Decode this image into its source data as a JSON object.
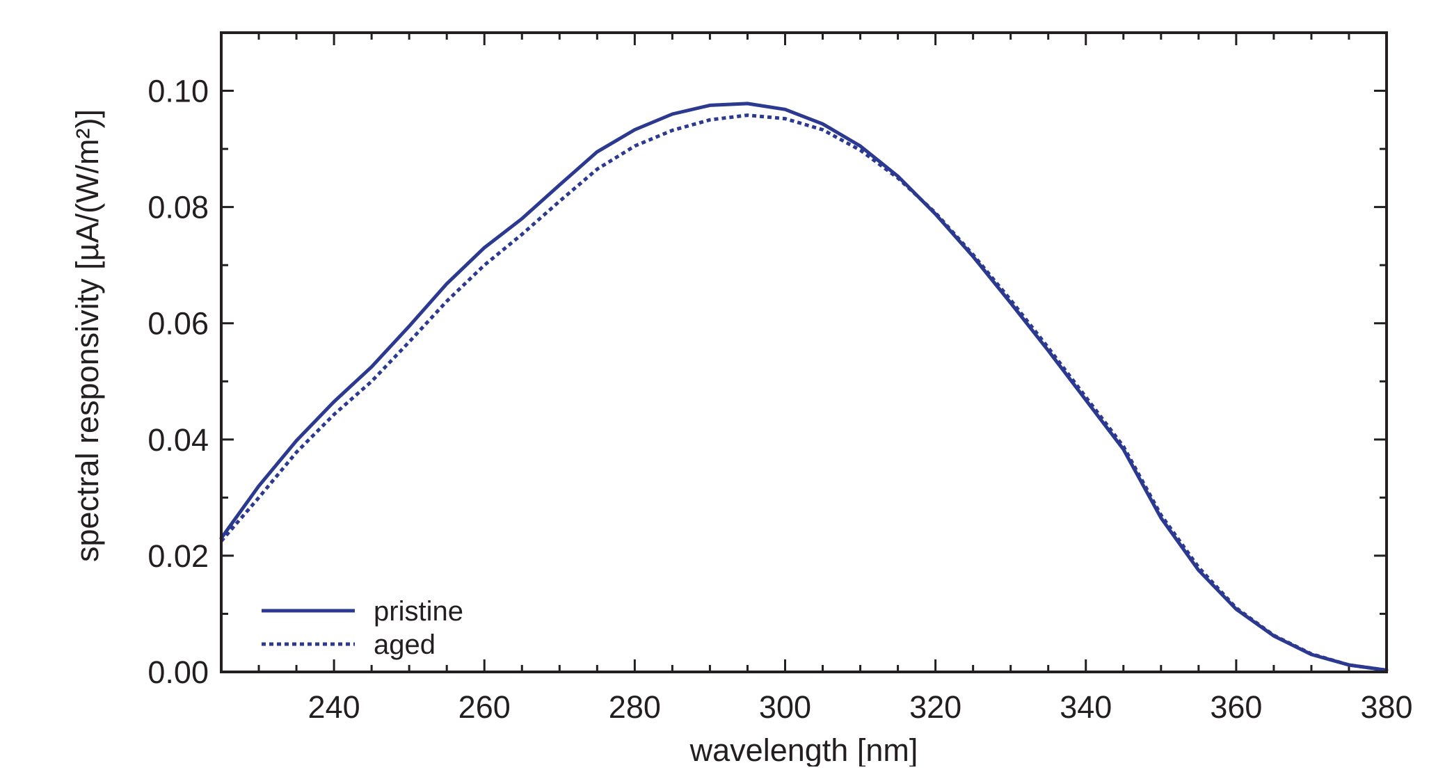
{
  "chart_data": {
    "type": "line",
    "title": "",
    "xlabel": "wavelength [nm]",
    "ylabel": "spectral responsivity [µA/(W/m²)]",
    "xlim": [
      225,
      380
    ],
    "ylim": [
      0.0,
      0.11
    ],
    "x_ticks": [
      240,
      260,
      280,
      300,
      320,
      340,
      360,
      380
    ],
    "y_ticks": [
      0.0,
      0.02,
      0.04,
      0.06,
      0.08,
      0.1
    ],
    "x_tick_labels": [
      "240",
      "260",
      "280",
      "300",
      "320",
      "340",
      "360",
      "380"
    ],
    "y_tick_labels": [
      "0.00",
      "0.02",
      "0.04",
      "0.06",
      "0.08",
      "0.10"
    ],
    "grid": false,
    "legend_position": "bottom-left",
    "line_color": "#2b3990",
    "series": [
      {
        "name": "pristine",
        "style": "solid",
        "x": [
          225,
          230,
          235,
          240,
          245,
          250,
          255,
          260,
          265,
          270,
          275,
          280,
          285,
          290,
          295,
          300,
          305,
          310,
          315,
          320,
          325,
          330,
          335,
          340,
          345,
          350,
          355,
          360,
          365,
          370,
          375,
          380
        ],
        "y": [
          0.023,
          0.032,
          0.0398,
          0.0465,
          0.0525,
          0.0595,
          0.0668,
          0.073,
          0.078,
          0.0838,
          0.0895,
          0.0933,
          0.096,
          0.0975,
          0.0978,
          0.0968,
          0.0943,
          0.0905,
          0.0853,
          0.0788,
          0.0715,
          0.0635,
          0.0553,
          0.0468,
          0.0383,
          0.0265,
          0.0175,
          0.0108,
          0.0062,
          0.003,
          0.0012,
          0.0003
        ]
      },
      {
        "name": "aged",
        "style": "dotted",
        "x": [
          225,
          230,
          235,
          240,
          245,
          250,
          255,
          260,
          265,
          270,
          275,
          280,
          285,
          290,
          295,
          300,
          305,
          310,
          315,
          320,
          325,
          330,
          335,
          340,
          345,
          350,
          355,
          360,
          365,
          370,
          375,
          380
        ],
        "y": [
          0.0225,
          0.03,
          0.0378,
          0.0443,
          0.05,
          0.0568,
          0.0638,
          0.07,
          0.0753,
          0.081,
          0.0865,
          0.0905,
          0.0932,
          0.095,
          0.0958,
          0.0952,
          0.0933,
          0.0898,
          0.085,
          0.079,
          0.0718,
          0.064,
          0.0558,
          0.0473,
          0.0388,
          0.027,
          0.018,
          0.011,
          0.0063,
          0.0031,
          0.0012,
          0.0003
        ]
      }
    ]
  }
}
